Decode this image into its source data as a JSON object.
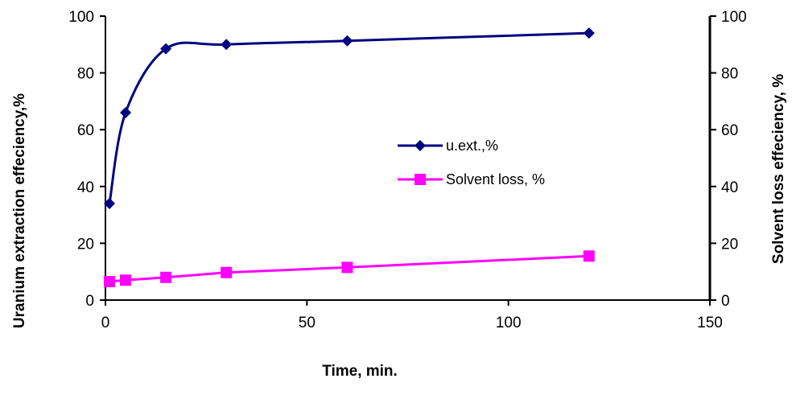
{
  "chart_data": {
    "type": "line",
    "xlabel": "Time, min.",
    "ylabel": "Uranium extraction effeciency,%",
    "y2label": "Solvent loss effeciency, %",
    "xlim": [
      0,
      150
    ],
    "ylim": [
      0,
      100
    ],
    "y2lim": [
      0,
      100
    ],
    "xticks": [
      "0",
      "50",
      "100",
      "150"
    ],
    "yticks": [
      "0",
      "20",
      "40",
      "60",
      "80",
      "100"
    ],
    "y2ticks": [
      "0",
      "20",
      "40",
      "60",
      "80",
      "100"
    ],
    "grid": false,
    "legend_position": "center-right",
    "series": [
      {
        "name": "u.ext.,%",
        "color": "#000080",
        "marker": "diamond",
        "smooth": true,
        "x": [
          1,
          5,
          15,
          30,
          60,
          120
        ],
        "y": [
          34,
          66,
          88.5,
          90,
          91.3,
          94
        ]
      },
      {
        "name": "Solvent loss, %",
        "color": "#FF00FF",
        "marker": "square",
        "smooth": false,
        "x": [
          1,
          5,
          15,
          30,
          60,
          120
        ],
        "y": [
          6.5,
          7,
          8,
          9.7,
          11.5,
          15.5
        ]
      }
    ]
  }
}
